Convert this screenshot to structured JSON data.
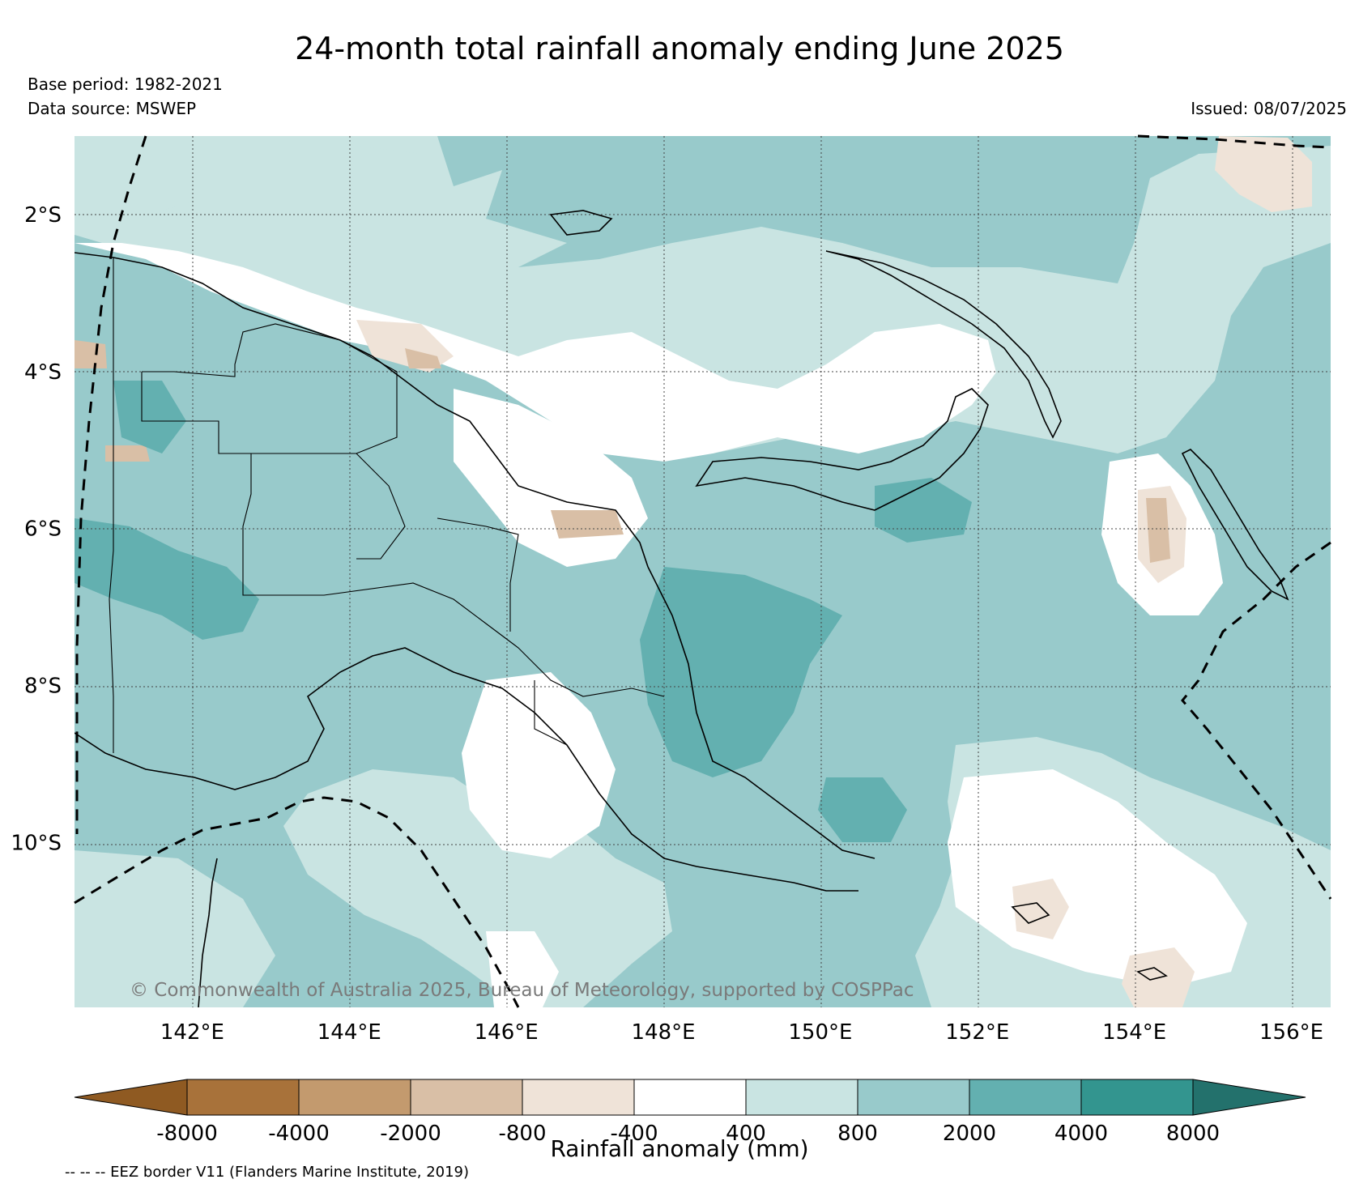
{
  "title": "24-month total rainfall anomaly ending June 2025",
  "base_period": "Base period: 1982-2021",
  "data_source": "Data source: MSWEP",
  "issued": "Issued: 08/07/2025",
  "copyright": "© Commonwealth of Australia 2025, Bureau of Meteorology, supported by COSPPac",
  "map": {
    "lon_range": [
      140.5,
      156.5
    ],
    "lat_range": [
      -12.1,
      -1.0
    ],
    "lon_ticks": [
      {
        "value": 142,
        "label": "142°E"
      },
      {
        "value": 144,
        "label": "144°E"
      },
      {
        "value": 146,
        "label": "146°E"
      },
      {
        "value": 148,
        "label": "148°E"
      },
      {
        "value": 150,
        "label": "150°E"
      },
      {
        "value": 152,
        "label": "152°E"
      },
      {
        "value": 154,
        "label": "154°E"
      },
      {
        "value": 156,
        "label": "156°E"
      }
    ],
    "lat_ticks": [
      {
        "value": -2,
        "label": "2°S"
      },
      {
        "value": -4,
        "label": "4°S"
      },
      {
        "value": -6,
        "label": "6°S"
      },
      {
        "value": -8,
        "label": "8°S"
      },
      {
        "value": -10,
        "label": "10°S"
      }
    ],
    "gridlines": true
  },
  "colorbar": {
    "title": "Rainfall anomaly (mm)",
    "labels": [
      "-8000",
      "-4000",
      "-2000",
      "-800",
      "-400",
      "400",
      "800",
      "2000",
      "4000",
      "8000"
    ],
    "colors": [
      "#8f5a22",
      "#a8723a",
      "#c39a6e",
      "#d9bfa6",
      "#efe3d8",
      "#ffffff",
      "#c9e4e2",
      "#98cacb",
      "#63b0b0",
      "#33958f",
      "#23716c"
    ],
    "extend": "both"
  },
  "eez_note": "-- -- -- EEZ border V11 (Flanders Marine Institute, 2019)",
  "colors": {
    "dry_light": "#efe3d8",
    "dry_mid": "#d9bfa6",
    "wet_light": "#c9e4e2",
    "wet_mid": "#98cacb",
    "wet_dark": "#63b0b0"
  }
}
